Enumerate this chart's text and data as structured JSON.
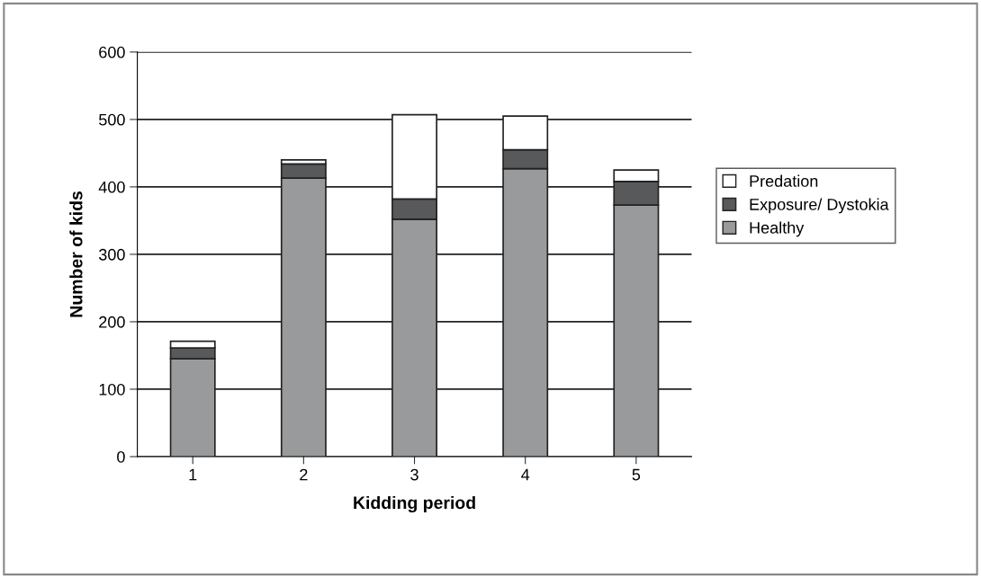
{
  "chart_data": {
    "type": "bar",
    "stacked": true,
    "xlabel": "Kidding period",
    "ylabel": "Number of kids",
    "categories": [
      "1",
      "2",
      "3",
      "4",
      "5"
    ],
    "series": [
      {
        "name": "Healthy",
        "color": "#999a9c",
        "values": [
          145,
          413,
          352,
          427,
          373
        ]
      },
      {
        "name": "Exposure/ Dystokia",
        "color": "#58595b",
        "values": [
          16,
          21,
          30,
          28,
          35
        ]
      },
      {
        "name": "Predation",
        "color": "#ffffff",
        "values": [
          10,
          6,
          125,
          50,
          17
        ]
      }
    ],
    "ylim": [
      0,
      600
    ],
    "yticks": [
      0,
      100,
      200,
      300,
      400,
      500,
      600
    ],
    "grid": "y",
    "legend": "right"
  }
}
